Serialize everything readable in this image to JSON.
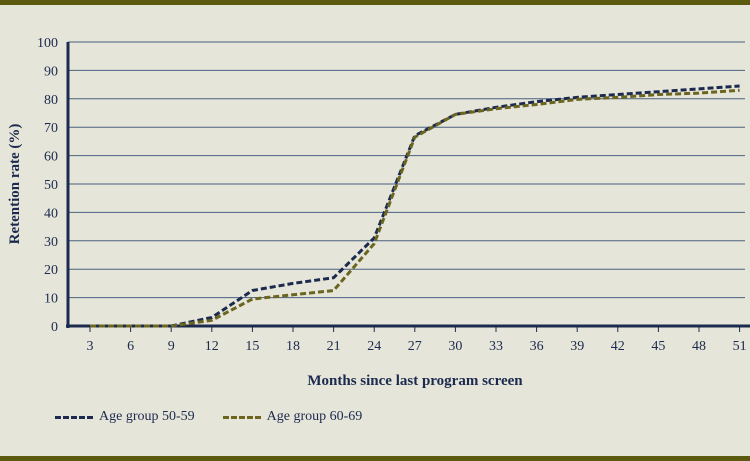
{
  "chart_data": {
    "type": "line",
    "xlabel": "Months since last program screen",
    "ylabel": "Retention rate (%)",
    "x": [
      3,
      6,
      9,
      12,
      15,
      18,
      21,
      24,
      27,
      30,
      33,
      36,
      39,
      42,
      45,
      48,
      51
    ],
    "ylim": [
      0,
      100
    ],
    "yticks": [
      0,
      10,
      20,
      30,
      40,
      50,
      60,
      70,
      80,
      90,
      100
    ],
    "grid": true,
    "legend": "bottom-left",
    "series": [
      {
        "name": "Age group 50-59",
        "color": "#1b2a4e",
        "values": [
          0,
          0,
          0,
          3,
          12.5,
          15,
          17,
          31,
          67,
          74.5,
          77,
          79,
          80.5,
          81.5,
          82.5,
          83.5,
          84.5
        ]
      },
      {
        "name": "Age group 60-69",
        "color": "#6b6520",
        "values": [
          0,
          0,
          0,
          2,
          9.5,
          11,
          12.5,
          29,
          66.5,
          74.5,
          76.5,
          78,
          79.8,
          80.5,
          81.5,
          82,
          83
        ]
      }
    ]
  }
}
